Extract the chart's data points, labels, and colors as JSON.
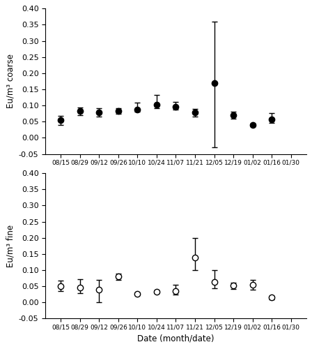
{
  "x_labels": [
    "08/15",
    "08/29",
    "09/12",
    "09/26",
    "10/10",
    "10/24",
    "11/07",
    "11/21",
    "12/05",
    "12/19",
    "01/02",
    "01/16",
    "01/30"
  ],
  "x_positions": [
    0,
    1,
    2,
    3,
    4,
    5,
    6,
    7,
    8,
    9,
    10,
    11,
    12
  ],
  "coarse_y": [
    0.055,
    0.083,
    0.078,
    0.083,
    0.088,
    0.102,
    0.097,
    0.078,
    0.17,
    0.07,
    0.04,
    0.058,
    null
  ],
  "coarse_yerr_upper": [
    0.012,
    0.01,
    0.013,
    0.008,
    0.02,
    0.03,
    0.015,
    0.012,
    0.19,
    0.01,
    0.005,
    0.018,
    null
  ],
  "coarse_yerr_lower": [
    0.015,
    0.012,
    0.012,
    0.008,
    0.008,
    0.01,
    0.01,
    0.012,
    0.2,
    0.01,
    0.005,
    0.012,
    null
  ],
  "fine_y": [
    0.05,
    0.047,
    0.04,
    0.08,
    0.027,
    0.033,
    0.035,
    0.14,
    0.063,
    0.052,
    0.055,
    0.015,
    null
  ],
  "fine_yerr_upper": [
    0.018,
    0.025,
    0.03,
    0.01,
    0.005,
    0.005,
    0.02,
    0.06,
    0.038,
    0.01,
    0.015,
    0.005,
    null
  ],
  "fine_yerr_lower": [
    0.015,
    0.018,
    0.04,
    0.01,
    0.005,
    0.005,
    0.01,
    0.04,
    0.02,
    0.01,
    0.015,
    0.005,
    null
  ],
  "ylim": [
    -0.05,
    0.4
  ],
  "yticks": [
    -0.05,
    0.0,
    0.05,
    0.1,
    0.15,
    0.2,
    0.25,
    0.3,
    0.35,
    0.4
  ],
  "ytick_labels": [
    "-0.05",
    "0.00",
    "0.05",
    "0.10",
    "0.15",
    "0.20",
    "0.25",
    "0.30",
    "0.35",
    "0.40"
  ],
  "ylabel_coarse": "Eu/m³ coarse",
  "ylabel_fine": "Eu/m³ fine",
  "xlabel": "Date (month/date)",
  "figsize": [
    4.48,
    5.0
  ],
  "dpi": 100
}
